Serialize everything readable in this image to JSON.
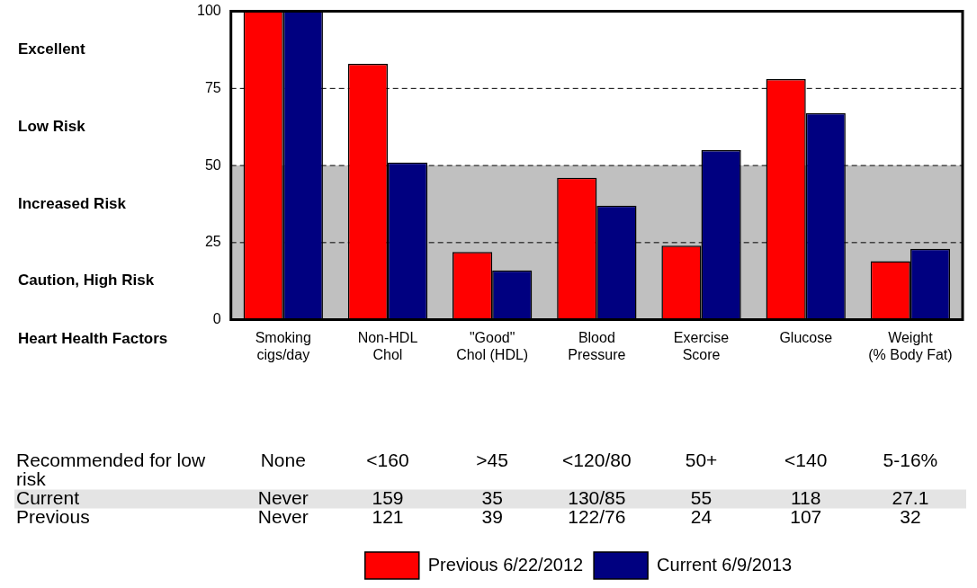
{
  "chart_data": {
    "type": "bar",
    "categories": [
      "Smoking\ncigs/day",
      "Non-HDL\nChol",
      "\"Good\"\nChol (HDL)",
      "Blood\nPressure",
      "Exercise\nScore",
      "Glucose",
      "Weight\n(% Body Fat)"
    ],
    "series": [
      {
        "name": "Previous 6/22/2012",
        "color": "#ff0000",
        "values": [
          100,
          83,
          22,
          46,
          24,
          78,
          19
        ]
      },
      {
        "name": "Current 6/9/2013",
        "color": "#000080",
        "values": [
          100,
          51,
          16,
          37,
          55,
          67,
          23
        ]
      }
    ],
    "ylim": [
      0,
      100
    ],
    "yticks": [
      0,
      25,
      50,
      75,
      100
    ],
    "grid": "y",
    "line_style": "dashed",
    "legend": "bottom",
    "bands": [
      {
        "axis": "y",
        "from": 0,
        "to": 50,
        "color": "#c0c0c0"
      }
    ],
    "annotations": [
      "Excellent",
      "Low Risk",
      "Increased Risk",
      "Caution, High Risk",
      "Heart Health Factors",
      "Recommended for low risk",
      "None",
      "<160",
      ">45",
      "<120/80",
      "50+",
      "<140",
      "5-16%",
      "Current",
      "Never",
      "159",
      "35",
      "130/85",
      "55",
      "118",
      "27.1",
      "Previous",
      "Never",
      "121",
      "39",
      "122/76",
      "24",
      "107",
      "32"
    ]
  }
}
